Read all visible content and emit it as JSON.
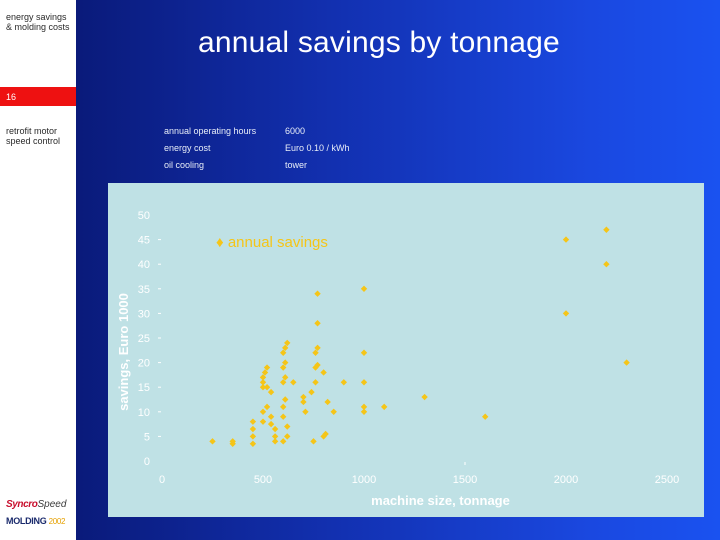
{
  "sidebar": {
    "topic": "energy savings & molding costs",
    "page_number": "16",
    "subtopic": "retrofit motor speed control",
    "logo_primary": "Syncro",
    "logo_primary_2": "Speed",
    "logo_secondary": "MOLDING",
    "logo_secondary_year": "2002"
  },
  "slide": {
    "title": "annual savings by tonnage"
  },
  "parameters": [
    {
      "label": "annual operating hours",
      "value": "6000"
    },
    {
      "label": "energy cost",
      "value": "Euro 0.10 / kWh"
    },
    {
      "label": "oil cooling",
      "value": "tower"
    }
  ],
  "colors": {
    "accent": "#f5c518",
    "panel": "#bfe1e5",
    "badge": "#ee1111"
  },
  "chart_data": {
    "type": "scatter",
    "title": "",
    "xlabel": "machine size, tonnage",
    "ylabel": "savings, Euro 1000",
    "xlim": [
      0,
      2500
    ],
    "ylim": [
      0,
      50
    ],
    "x_ticks": [
      "0",
      "500",
      "1000",
      "1500",
      "2000",
      "2500"
    ],
    "y_ticks": [
      "0",
      "5",
      "10",
      "15",
      "20",
      "25",
      "30",
      "35",
      "40",
      "45",
      "50"
    ],
    "legend": {
      "entries": [
        "♦ annual savings"
      ],
      "placement": "top-left"
    },
    "grid": false,
    "series": [
      {
        "name": "annual savings",
        "points": [
          {
            "x": 250,
            "y": 4
          },
          {
            "x": 350,
            "y": 3.5
          },
          {
            "x": 350,
            "y": 4
          },
          {
            "x": 450,
            "y": 3.5
          },
          {
            "x": 450,
            "y": 5
          },
          {
            "x": 450,
            "y": 6.5
          },
          {
            "x": 450,
            "y": 8
          },
          {
            "x": 500,
            "y": 10
          },
          {
            "x": 500,
            "y": 15
          },
          {
            "x": 500,
            "y": 16
          },
          {
            "x": 500,
            "y": 17
          },
          {
            "x": 510,
            "y": 18
          },
          {
            "x": 520,
            "y": 19
          },
          {
            "x": 520,
            "y": 15
          },
          {
            "x": 540,
            "y": 14
          },
          {
            "x": 520,
            "y": 11
          },
          {
            "x": 540,
            "y": 9
          },
          {
            "x": 540,
            "y": 7.5
          },
          {
            "x": 560,
            "y": 6.5
          },
          {
            "x": 560,
            "y": 5
          },
          {
            "x": 560,
            "y": 4
          },
          {
            "x": 500,
            "y": 8
          },
          {
            "x": 600,
            "y": 11
          },
          {
            "x": 610,
            "y": 12.5
          },
          {
            "x": 600,
            "y": 16
          },
          {
            "x": 610,
            "y": 17
          },
          {
            "x": 600,
            "y": 19
          },
          {
            "x": 610,
            "y": 20
          },
          {
            "x": 600,
            "y": 22
          },
          {
            "x": 610,
            "y": 23
          },
          {
            "x": 620,
            "y": 24
          },
          {
            "x": 600,
            "y": 9
          },
          {
            "x": 620,
            "y": 7
          },
          {
            "x": 620,
            "y": 5
          },
          {
            "x": 600,
            "y": 4
          },
          {
            "x": 650,
            "y": 16
          },
          {
            "x": 700,
            "y": 13
          },
          {
            "x": 700,
            "y": 12
          },
          {
            "x": 710,
            "y": 10
          },
          {
            "x": 740,
            "y": 14
          },
          {
            "x": 750,
            "y": 4
          },
          {
            "x": 760,
            "y": 16
          },
          {
            "x": 760,
            "y": 19
          },
          {
            "x": 770,
            "y": 19.5
          },
          {
            "x": 760,
            "y": 22
          },
          {
            "x": 770,
            "y": 23
          },
          {
            "x": 770,
            "y": 28
          },
          {
            "x": 770,
            "y": 34
          },
          {
            "x": 800,
            "y": 5
          },
          {
            "x": 810,
            "y": 5.5
          },
          {
            "x": 800,
            "y": 18
          },
          {
            "x": 820,
            "y": 12
          },
          {
            "x": 850,
            "y": 10
          },
          {
            "x": 900,
            "y": 16
          },
          {
            "x": 1000,
            "y": 35
          },
          {
            "x": 1000,
            "y": 22
          },
          {
            "x": 1000,
            "y": 16
          },
          {
            "x": 1000,
            "y": 11
          },
          {
            "x": 1000,
            "y": 10
          },
          {
            "x": 1100,
            "y": 11
          },
          {
            "x": 1300,
            "y": 13
          },
          {
            "x": 1600,
            "y": 9
          },
          {
            "x": 2000,
            "y": 45
          },
          {
            "x": 2000,
            "y": 30
          },
          {
            "x": 2200,
            "y": 47
          },
          {
            "x": 2200,
            "y": 40
          },
          {
            "x": 2300,
            "y": 20
          }
        ]
      }
    ]
  }
}
